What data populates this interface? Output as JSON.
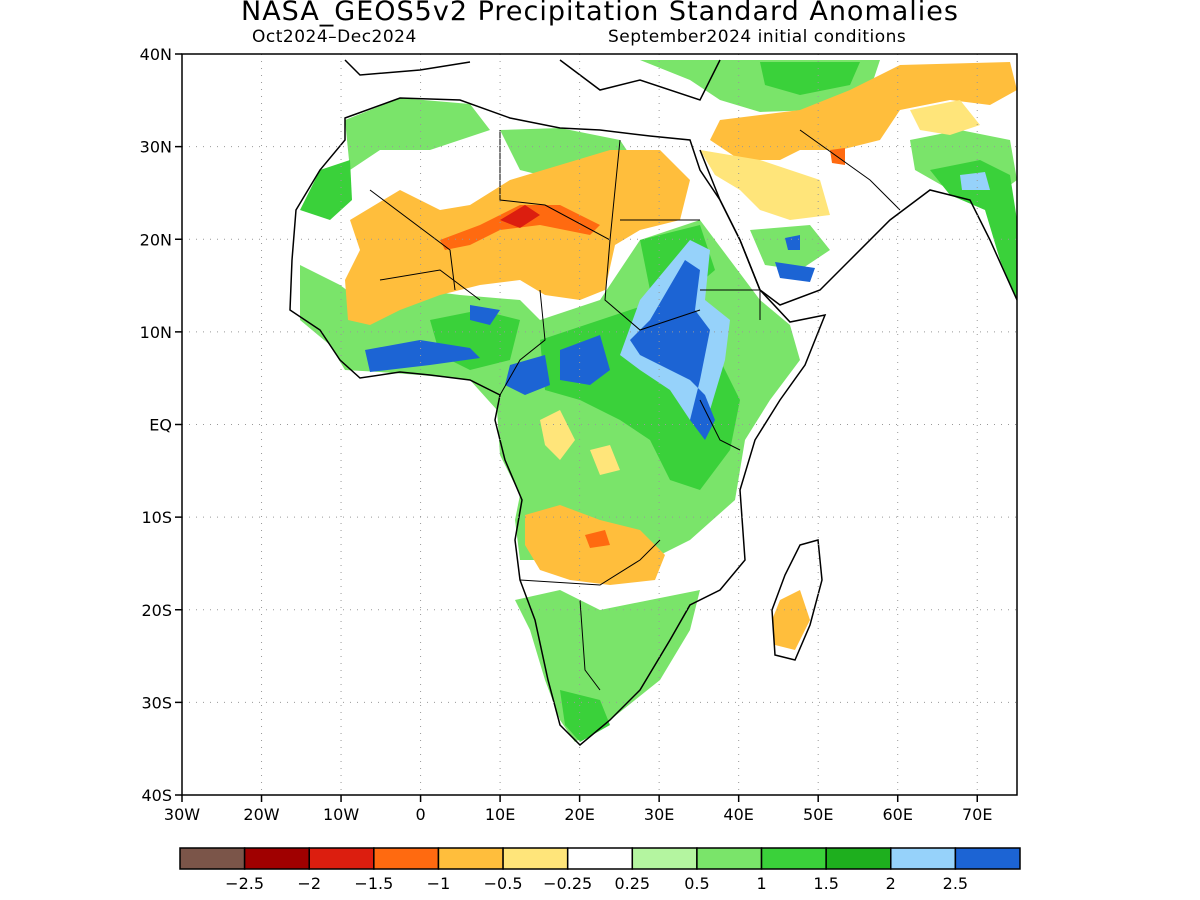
{
  "title": "NASA_GEOS5v2 Precipitation Standard Anomalies",
  "subtitle_left": "Oct2024–Dec2024",
  "subtitle_right": "September2024 initial conditions",
  "map": {
    "lon_range": [
      -30,
      75
    ],
    "lat_range": [
      -40,
      40
    ],
    "lat_labels": [
      "40N",
      "30N",
      "20N",
      "10N",
      "EQ",
      "10S",
      "20S",
      "30S",
      "40S"
    ],
    "lon_labels": [
      "30W",
      "20W",
      "10W",
      "0",
      "10E",
      "20E",
      "30E",
      "40E",
      "50E",
      "60E",
      "70E"
    ],
    "gridlines": true
  },
  "colorbar": {
    "colors": [
      "#7b5549",
      "#a00000",
      "#dc1e0f",
      "#ff6a10",
      "#ffbe3c",
      "#ffe57a",
      "#ffffff",
      "#b4f5a0",
      "#7ae46a",
      "#3ad13a",
      "#1eaf1e",
      "#96d2fa",
      "#1c64d4"
    ],
    "labels": [
      "−2.5",
      "−2",
      "−1.5",
      "−1",
      "−0.5",
      "−0.25",
      "0.25",
      "0.5",
      "1",
      "1.5",
      "2",
      "2.5"
    ]
  }
}
